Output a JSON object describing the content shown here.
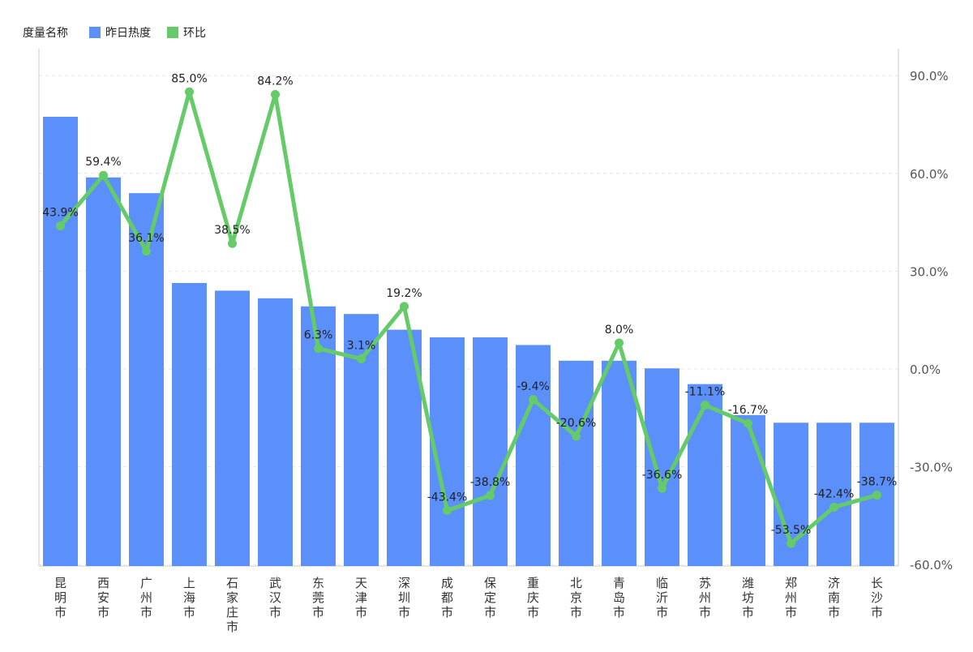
{
  "legend": {
    "title": "度量名称",
    "items": [
      {
        "label": "昨日热度",
        "color": "#5b8ff9"
      },
      {
        "label": "环比",
        "color": "#64cb68"
      }
    ]
  },
  "chart_data": {
    "type": "bar",
    "categories": [
      "昆明市",
      "西安市",
      "广州市",
      "上海市",
      "石家庄市",
      "武汉市",
      "东莞市",
      "天津市",
      "深圳市",
      "成都市",
      "保定市",
      "重庆市",
      "北京市",
      "青岛市",
      "临沂市",
      "苏州市",
      "潍坊市",
      "郑州市",
      "济南市",
      "长沙市"
    ],
    "series": [
      {
        "name": "昨日热度",
        "type": "bar",
        "axis": "left",
        "color": "#5b8ff9",
        "values": [
          100,
          86.5,
          83,
          63,
          61.3,
          59.6,
          57.8,
          56.1,
          52.6,
          50.9,
          50.9,
          49.2,
          45.7,
          45.7,
          44,
          40.5,
          33.6,
          31.9,
          31.9,
          31.9
        ]
      },
      {
        "name": "环比",
        "type": "line",
        "axis": "right",
        "color": "#64cb68",
        "values": [
          43.9,
          59.4,
          36.1,
          85.0,
          38.5,
          84.2,
          6.3,
          3.1,
          19.2,
          -43.4,
          -38.8,
          -9.4,
          -20.6,
          8.0,
          -36.6,
          -11.1,
          -16.7,
          -53.5,
          -42.4,
          -38.7
        ],
        "labels": [
          "43.9%",
          "59.4%",
          "36.1%",
          "85.0%",
          "38.5%",
          "84.2%",
          "6.3%",
          "3.1%",
          "19.2%",
          "-43.4%",
          "-38.8%",
          "-9.4%",
          "-20.6%",
          "8.0%",
          "-36.6%",
          "-11.1%",
          "-16.7%",
          "-53.5%",
          "-42.4%",
          "-38.7%"
        ]
      }
    ],
    "y_left_range": [
      0,
      100
    ],
    "y_right": {
      "ticks": [
        90,
        60,
        30,
        0,
        -30,
        -60
      ],
      "tick_labels": [
        "90.0%",
        "60.0%",
        "30.0%",
        "0.0%",
        "-30.0%",
        "-60.0%"
      ]
    },
    "grid": true
  }
}
